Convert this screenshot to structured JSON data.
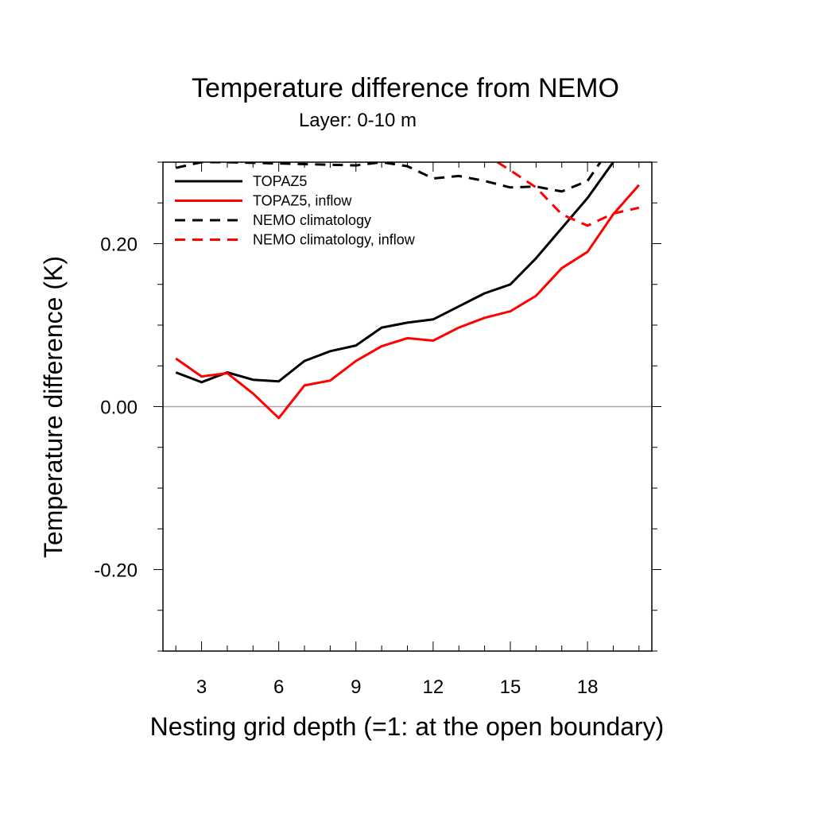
{
  "chart_data": {
    "type": "line",
    "title": "Temperature difference from NEMO",
    "subtitle": "Layer: 0-10 m",
    "xlabel": "Nesting grid depth (=1: at the open boundary)",
    "ylabel": "Temperature difference (K)",
    "xlim": [
      1.5,
      20.5
    ],
    "ylim": [
      -0.3,
      0.3
    ],
    "xticks": [
      3,
      6,
      9,
      12,
      15,
      18
    ],
    "xtick_labels": [
      "3",
      "6",
      "9",
      "12",
      "15",
      "18"
    ],
    "yticks": [
      -0.2,
      0.0,
      0.2
    ],
    "ytick_labels": [
      "-0.20",
      "0.00",
      "0.20"
    ],
    "zero_line": true,
    "grid": false,
    "legend_position": "top-left",
    "series": [
      {
        "name": "TOPAZ5",
        "color": "#000000",
        "dash": "solid",
        "x": [
          2,
          3,
          4,
          5,
          6,
          7,
          8,
          9,
          10,
          11,
          12,
          13,
          14,
          15,
          16,
          17,
          18,
          19
        ],
        "y": [
          0.042,
          0.03,
          0.042,
          0.033,
          0.031,
          0.056,
          0.068,
          0.075,
          0.097,
          0.103,
          0.107,
          0.123,
          0.139,
          0.15,
          0.182,
          0.219,
          0.256,
          0.3
        ]
      },
      {
        "name": "TOPAZ5, inflow",
        "color": "#ff0000",
        "dash": "solid",
        "x": [
          2,
          3,
          4,
          5,
          6,
          7,
          8,
          9,
          10,
          11,
          12,
          13,
          14,
          15,
          16,
          17,
          18,
          19,
          20
        ],
        "y": [
          0.059,
          0.037,
          0.041,
          0.016,
          -0.014,
          0.026,
          0.032,
          0.056,
          0.074,
          0.084,
          0.081,
          0.097,
          0.109,
          0.117,
          0.136,
          0.17,
          0.19,
          0.236,
          0.272
        ]
      },
      {
        "name": "NEMO climatology",
        "color": "#000000",
        "dash": "dashed",
        "x": [
          2,
          3,
          4,
          9,
          10,
          11,
          12,
          13,
          14,
          15,
          16,
          17,
          18,
          18.5
        ],
        "y": [
          0.293,
          0.3,
          0.3,
          0.296,
          0.3,
          0.295,
          0.28,
          0.283,
          0.277,
          0.269,
          0.27,
          0.264,
          0.277,
          0.3
        ]
      },
      {
        "name": "NEMO climatology, inflow",
        "color": "#ff0000",
        "dash": "dashed",
        "x": [
          14.5,
          15,
          16,
          17,
          18,
          19,
          20
        ],
        "y": [
          0.3,
          0.29,
          0.269,
          0.236,
          0.222,
          0.237,
          0.244
        ]
      }
    ]
  }
}
